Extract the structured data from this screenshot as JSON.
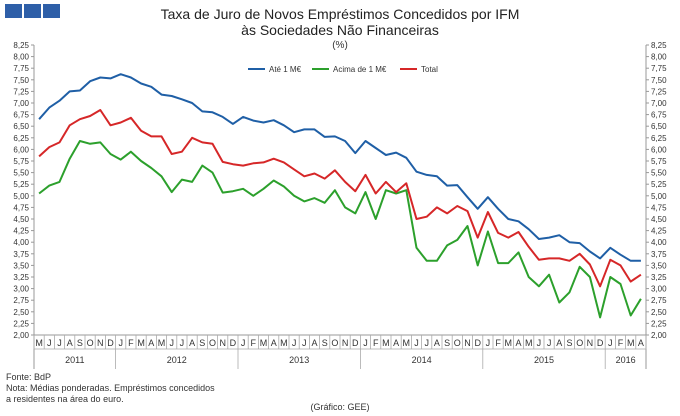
{
  "header": {
    "logo_color": "#2e5fa8",
    "title_line1": "Taxa de Juro de Novos Empréstimos Concedidos por IFM",
    "title_line2": "às Sociedades Não Financeiras",
    "units": "(%)"
  },
  "footer": {
    "source": "Fonte: BdP",
    "note_line1": "Nota: Médias ponderadas.  Empréstimos concedidos",
    "note_line2": "a residentes na área do euro.",
    "credit": "(Gráfico: GEE)"
  },
  "chart_data": {
    "type": "line",
    "title": "Taxa de Juro de Novos Empréstimos Concedidos por IFM às Sociedades Não Financeiras",
    "ylabel": "(%)",
    "ylim": [
      2.0,
      8.25
    ],
    "ytick_step": 0.25,
    "grid": false,
    "legend_position": "top-center",
    "months": [
      "M",
      "J",
      "J",
      "A",
      "S",
      "O",
      "N",
      "D",
      "J",
      "F",
      "M",
      "A",
      "M",
      "J",
      "J",
      "A",
      "S",
      "O",
      "N",
      "D",
      "J",
      "F",
      "M",
      "A",
      "M",
      "J",
      "J",
      "A",
      "S",
      "O",
      "N",
      "D",
      "J",
      "F",
      "M",
      "A",
      "M",
      "J",
      "J",
      "A",
      "S",
      "O",
      "N",
      "D",
      "J",
      "F",
      "M",
      "A",
      "M",
      "J",
      "J",
      "A",
      "S",
      "O",
      "N",
      "D",
      "J",
      "F",
      "M",
      "A"
    ],
    "years": [
      {
        "label": "2011",
        "start": 0,
        "end": 7
      },
      {
        "label": "2012",
        "start": 8,
        "end": 19
      },
      {
        "label": "2013",
        "start": 20,
        "end": 31
      },
      {
        "label": "2014",
        "start": 32,
        "end": 43
      },
      {
        "label": "2015",
        "start": 44,
        "end": 55
      },
      {
        "label": "2016",
        "start": 56,
        "end": 59
      }
    ],
    "series": [
      {
        "name": "Até 1 M€",
        "color": "#1f5fa6",
        "values": [
          6.65,
          6.9,
          7.05,
          7.25,
          7.27,
          7.47,
          7.55,
          7.53,
          7.62,
          7.55,
          7.42,
          7.35,
          7.18,
          7.15,
          7.08,
          7.0,
          6.82,
          6.8,
          6.7,
          6.55,
          6.7,
          6.62,
          6.58,
          6.63,
          6.52,
          6.37,
          6.43,
          6.43,
          6.27,
          6.28,
          6.18,
          5.92,
          6.18,
          6.03,
          5.88,
          5.93,
          5.82,
          5.52,
          5.45,
          5.42,
          5.22,
          5.23,
          4.97,
          4.72,
          4.97,
          4.72,
          4.5,
          4.45,
          4.28,
          4.07,
          4.1,
          4.15,
          4.0,
          3.98,
          3.8,
          3.65,
          3.88,
          3.73,
          3.6,
          3.6
        ]
      },
      {
        "name": "Acima de 1 M€",
        "color": "#2ca02c",
        "values": [
          5.05,
          5.22,
          5.3,
          5.8,
          6.18,
          6.12,
          6.15,
          5.9,
          5.78,
          5.95,
          5.75,
          5.6,
          5.42,
          5.08,
          5.35,
          5.3,
          5.65,
          5.5,
          5.07,
          5.1,
          5.15,
          5.0,
          5.15,
          5.33,
          5.2,
          5.0,
          4.88,
          4.95,
          4.85,
          5.12,
          4.75,
          4.62,
          5.08,
          4.5,
          5.12,
          5.05,
          5.12,
          3.88,
          3.6,
          3.6,
          3.93,
          4.05,
          4.35,
          3.5,
          4.23,
          3.55,
          3.55,
          3.78,
          3.25,
          3.05,
          3.3,
          2.7,
          2.92,
          3.47,
          3.25,
          2.38,
          3.25,
          3.1,
          2.42,
          2.78
        ]
      },
      {
        "name": "Total",
        "color": "#d62728",
        "values": [
          5.85,
          6.05,
          6.15,
          6.52,
          6.65,
          6.72,
          6.85,
          6.52,
          6.58,
          6.68,
          6.4,
          6.28,
          6.28,
          5.9,
          5.95,
          6.25,
          6.15,
          6.12,
          5.73,
          5.68,
          5.65,
          5.7,
          5.72,
          5.8,
          5.72,
          5.57,
          5.42,
          5.48,
          5.37,
          5.55,
          5.3,
          5.1,
          5.45,
          5.05,
          5.3,
          5.08,
          5.27,
          4.5,
          4.55,
          4.75,
          4.62,
          4.78,
          4.67,
          4.1,
          4.65,
          4.2,
          4.1,
          4.22,
          3.9,
          3.62,
          3.65,
          3.65,
          3.6,
          3.75,
          3.52,
          3.05,
          3.62,
          3.5,
          3.15,
          3.3
        ]
      }
    ]
  }
}
